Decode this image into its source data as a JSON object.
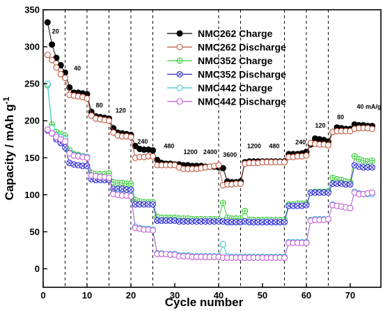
{
  "chart_data": {
    "type": "scatter",
    "title": "",
    "xlabel": "Cycle number",
    "ylabel": "Capacity / mAh g",
    "ylabel_superscript": "-1",
    "xlim": [
      0,
      77
    ],
    "ylim": [
      -25,
      350
    ],
    "xticks": [
      0,
      10,
      20,
      30,
      40,
      50,
      60,
      70
    ],
    "yticks": [
      0,
      50,
      100,
      150,
      200,
      250,
      300,
      350
    ],
    "dividers": [
      5,
      10,
      15,
      20,
      25,
      40,
      45,
      55,
      60,
      65
    ],
    "legend_position": "top-right",
    "rate_labels": [
      {
        "text": "20",
        "x": 2,
        "y": 318
      },
      {
        "text": "40",
        "x": 7,
        "y": 268
      },
      {
        "text": "80",
        "x": 12,
        "y": 218
      },
      {
        "text": "120",
        "x": 16.5,
        "y": 211
      },
      {
        "text": "240",
        "x": 21.5,
        "y": 169
      },
      {
        "text": "480",
        "x": 27.5,
        "y": 163
      },
      {
        "text": "1200",
        "x": 32,
        "y": 155
      },
      {
        "text": "2400",
        "x": 36.5,
        "y": 155
      },
      {
        "text": "3600",
        "x": 41,
        "y": 151
      },
      {
        "text": "1200",
        "x": 46.5,
        "y": 163
      },
      {
        "text": "480",
        "x": 51.5,
        "y": 163
      },
      {
        "text": "240",
        "x": 57.5,
        "y": 168
      },
      {
        "text": "120",
        "x": 62,
        "y": 191
      },
      {
        "text": "80",
        "x": 67,
        "y": 202
      },
      {
        "text": "40 mA/g",
        "x": 71.5,
        "y": 216
      }
    ],
    "series": [
      {
        "name": "NMC262 Charge",
        "color": "#000000",
        "marker": "filled-circle",
        "x": [
          1,
          2,
          3,
          4,
          5,
          6,
          7,
          8,
          9,
          10,
          11,
          12,
          13,
          14,
          15,
          16,
          17,
          18,
          19,
          20,
          21,
          22,
          23,
          24,
          25,
          26,
          27,
          28,
          29,
          30,
          31,
          32,
          33,
          34,
          35,
          36,
          37,
          38,
          39,
          40,
          41,
          42,
          43,
          44,
          45,
          46,
          47,
          48,
          49,
          50,
          51,
          52,
          53,
          54,
          55,
          56,
          57,
          58,
          59,
          60,
          61,
          62,
          63,
          64,
          65,
          66,
          67,
          68,
          69,
          70,
          71,
          72,
          73,
          74,
          75
        ],
        "values": [
          333,
          303,
          285,
          275,
          265,
          245,
          238,
          238,
          237,
          236,
          212,
          206,
          205,
          204,
          203,
          190,
          184,
          183,
          182,
          181,
          166,
          162,
          161,
          161,
          160,
          147,
          143,
          142,
          142,
          141,
          141,
          140,
          140,
          139,
          139,
          139,
          138,
          138,
          138,
          137,
          136,
          118,
          117,
          117,
          118,
          144,
          145,
          145,
          145,
          145,
          145,
          145,
          145,
          145,
          145,
          155,
          155,
          155,
          156,
          158,
          168,
          176,
          175,
          174,
          172,
          185,
          191,
          190,
          189,
          189,
          195,
          194,
          194,
          193,
          193
        ]
      },
      {
        "name": "NMC262 Discharge",
        "color": "#c0543c",
        "marker": "open-circle",
        "x": [
          1,
          2,
          3,
          4,
          5,
          6,
          7,
          8,
          9,
          10,
          11,
          12,
          13,
          14,
          15,
          16,
          17,
          18,
          19,
          20,
          21,
          22,
          23,
          24,
          25,
          26,
          27,
          28,
          29,
          30,
          31,
          32,
          33,
          34,
          35,
          36,
          37,
          38,
          39,
          40,
          41,
          42,
          43,
          44,
          45,
          46,
          47,
          48,
          49,
          50,
          51,
          52,
          53,
          54,
          55,
          56,
          57,
          58,
          59,
          60,
          61,
          62,
          63,
          64,
          65,
          66,
          67,
          68,
          69,
          70,
          71,
          72,
          73,
          74,
          75
        ],
        "values": [
          289,
          282,
          272,
          263,
          258,
          235,
          234,
          233,
          232,
          230,
          207,
          203,
          202,
          201,
          200,
          184,
          180,
          179,
          179,
          178,
          150,
          151,
          151,
          152,
          152,
          140,
          140,
          140,
          140,
          140,
          137,
          135,
          135,
          135,
          135,
          136,
          137,
          138,
          139,
          140,
          113,
          114,
          114,
          115,
          115,
          142,
          143,
          143,
          143,
          144,
          144,
          144,
          144,
          144,
          144,
          151,
          151,
          152,
          152,
          153,
          170,
          169,
          168,
          168,
          167,
          185,
          186,
          186,
          186,
          186,
          189,
          190,
          190,
          190,
          189
        ]
      },
      {
        "name": "NMC352 Charge",
        "color": "#3ccc3c",
        "marker": "circle-plus",
        "x": [
          1,
          2,
          3,
          4,
          5,
          6,
          7,
          8,
          9,
          10,
          11,
          12,
          13,
          14,
          15,
          16,
          17,
          18,
          19,
          20,
          21,
          22,
          23,
          24,
          25,
          26,
          27,
          28,
          29,
          30,
          31,
          32,
          33,
          34,
          35,
          36,
          37,
          38,
          39,
          40,
          41,
          42,
          43,
          44,
          45,
          46,
          47,
          48,
          49,
          50,
          51,
          52,
          53,
          54,
          55,
          56,
          57,
          58,
          59,
          60,
          61,
          62,
          63,
          64,
          65,
          66,
          67,
          68,
          69,
          70,
          71,
          72,
          73,
          74,
          75
        ],
        "values": [
          248,
          195,
          185,
          182,
          180,
          160,
          155,
          154,
          152,
          151,
          130,
          128,
          128,
          128,
          129,
          117,
          116,
          116,
          115,
          115,
          93,
          91,
          90,
          90,
          90,
          70,
          69,
          69,
          69,
          69,
          68,
          68,
          68,
          67,
          67,
          67,
          67,
          67,
          67,
          67,
          89,
          69,
          68,
          68,
          68,
          78,
          66,
          66,
          66,
          66,
          66,
          66,
          66,
          66,
          66,
          87,
          87,
          88,
          88,
          88,
          103,
          104,
          104,
          104,
          105,
          123,
          121,
          120,
          118,
          117,
          152,
          148,
          146,
          145,
          146
        ]
      },
      {
        "name": "NMC352 Discharge",
        "color": "#2b2bd6",
        "marker": "circle-x",
        "x": [
          1,
          2,
          3,
          4,
          5,
          6,
          7,
          8,
          9,
          10,
          11,
          12,
          13,
          14,
          15,
          16,
          17,
          18,
          19,
          20,
          21,
          22,
          23,
          24,
          25,
          26,
          27,
          28,
          29,
          30,
          31,
          32,
          33,
          34,
          35,
          36,
          37,
          38,
          39,
          40,
          41,
          42,
          43,
          44,
          45,
          46,
          47,
          48,
          49,
          50,
          51,
          52,
          53,
          54,
          55,
          56,
          57,
          58,
          59,
          60,
          61,
          62,
          63,
          64,
          65,
          66,
          67,
          68,
          69,
          70,
          71,
          72,
          73,
          74,
          75
        ],
        "values": [
          187,
          183,
          175,
          170,
          164,
          143,
          141,
          140,
          139,
          139,
          121,
          120,
          120,
          120,
          120,
          108,
          108,
          108,
          107,
          107,
          87,
          87,
          87,
          87,
          87,
          65,
          65,
          65,
          65,
          65,
          64,
          64,
          64,
          64,
          64,
          64,
          64,
          64,
          64,
          64,
          64,
          63,
          63,
          63,
          63,
          64,
          63,
          63,
          63,
          63,
          63,
          63,
          63,
          63,
          63,
          85,
          85,
          85,
          85,
          86,
          103,
          103,
          103,
          103,
          103,
          115,
          115,
          115,
          114,
          114,
          140,
          138,
          137,
          137,
          137
        ]
      },
      {
        "name": "NMC442 Charge",
        "color": "#35c8d8",
        "marker": "open-circle",
        "x": [
          1,
          2,
          3,
          4,
          5,
          6,
          7,
          8,
          9,
          10,
          11,
          12,
          13,
          14,
          15,
          16,
          17,
          18,
          19,
          20,
          21,
          22,
          23,
          24,
          25,
          26,
          27,
          28,
          29,
          30,
          31,
          32,
          33,
          34,
          35,
          36,
          37,
          38,
          39,
          40,
          41,
          42,
          43,
          44,
          45,
          46,
          47,
          48,
          49,
          50,
          51,
          52,
          53,
          54,
          55,
          56,
          57,
          58,
          59,
          60,
          61,
          62,
          63,
          64,
          65,
          66,
          67,
          68,
          69,
          70,
          71,
          72,
          73,
          74,
          75
        ],
        "values": [
          250,
          190,
          180,
          178,
          175,
          157,
          154,
          153,
          152,
          151,
          126,
          125,
          124,
          124,
          123,
          102,
          101,
          100,
          99,
          99,
          57,
          55,
          54,
          54,
          53,
          21,
          21,
          20,
          20,
          20,
          18,
          18,
          18,
          17,
          17,
          17,
          17,
          17,
          17,
          17,
          33,
          17,
          16,
          16,
          16,
          16,
          16,
          16,
          16,
          16,
          16,
          16,
          16,
          16,
          16,
          36,
          36,
          36,
          36,
          36,
          66,
          67,
          67,
          67,
          67,
          87,
          85,
          84,
          83,
          82,
          104,
          102,
          101,
          101,
          101
        ]
      },
      {
        "name": "NMC442 Discharge",
        "color": "#c65cd6",
        "marker": "open-circle",
        "x": [
          1,
          2,
          3,
          4,
          5,
          6,
          7,
          8,
          9,
          10,
          11,
          12,
          13,
          14,
          15,
          16,
          17,
          18,
          19,
          20,
          21,
          22,
          23,
          24,
          25,
          26,
          27,
          28,
          29,
          30,
          31,
          32,
          33,
          34,
          35,
          36,
          37,
          38,
          39,
          40,
          41,
          42,
          43,
          44,
          45,
          46,
          47,
          48,
          49,
          50,
          51,
          52,
          53,
          54,
          55,
          56,
          57,
          58,
          59,
          60,
          61,
          62,
          63,
          64,
          65,
          66,
          67,
          68,
          69,
          70,
          71,
          72,
          73,
          74,
          75
        ],
        "values": [
          188,
          183,
          178,
          175,
          172,
          156,
          153,
          152,
          151,
          150,
          126,
          125,
          124,
          124,
          123,
          101,
          100,
          99,
          99,
          98,
          55,
          54,
          53,
          53,
          52,
          20,
          20,
          20,
          19,
          19,
          17,
          17,
          17,
          16,
          16,
          16,
          16,
          16,
          16,
          16,
          15,
          15,
          15,
          15,
          15,
          15,
          15,
          15,
          15,
          15,
          15,
          15,
          15,
          15,
          15,
          35,
          35,
          35,
          35,
          35,
          65,
          66,
          66,
          66,
          67,
          86,
          85,
          84,
          83,
          82,
          103,
          101,
          101,
          102,
          103
        ]
      }
    ]
  }
}
